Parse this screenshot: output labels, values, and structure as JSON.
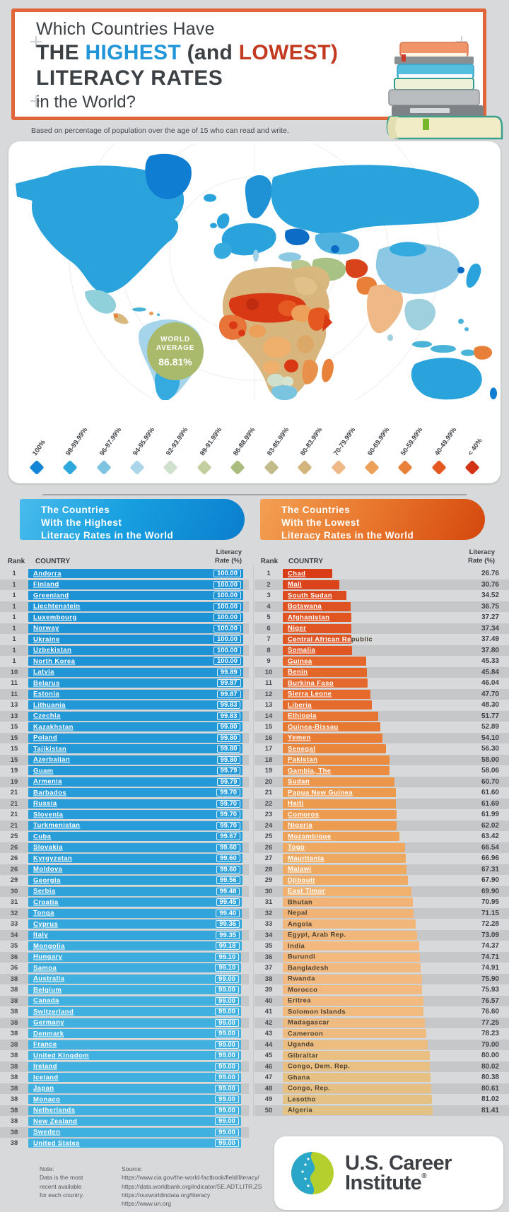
{
  "header": {
    "line1": "Which Countries Have",
    "line2_the": "THE ",
    "line2_highest": "HIGHEST",
    "line2_and": " (and ",
    "line2_lowest": "LOWEST)",
    "line3": "LITERACY RATES",
    "line4": "in the World?",
    "accent_blue": "#2096d8",
    "accent_red": "#c23a1f",
    "border_color": "#e0663a"
  },
  "subtitle": "Based on percentage of population over the age of 15 who can read and write.",
  "map": {
    "world_average_label1": "WORLD",
    "world_average_label2": "AVERAGE",
    "world_average_value": "86.81%",
    "circle_color": "#a9ba6d"
  },
  "tables": {
    "highest": {
      "title_lines": [
        "The Countries",
        "With the Highest",
        "Literacy Rates in the World"
      ],
      "header_rank": "Rank",
      "header_country": "COUNTRY",
      "header_rate_line1": "Literacy",
      "header_rate_line2": "Rate (%)",
      "bar_color_stops": [
        [
          99.0,
          "#3fb0df"
        ],
        [
          100.0,
          "#1d93d5"
        ]
      ]
    },
    "lowest": {
      "title_lines": [
        "The Countries",
        "With the Lowest",
        "Literacy Rates in the World"
      ],
      "header_rank": "Rank",
      "header_country": "COUNTRY",
      "header_rate_line1": "Literacy",
      "header_rate_line2": "Rate (%)",
      "bar_color_stops": [
        [
          26,
          "#d73c16"
        ],
        [
          34,
          "#dd4a1e"
        ],
        [
          40,
          "#e25e26"
        ],
        [
          48,
          "#e56a2c"
        ],
        [
          54,
          "#e97d35"
        ],
        [
          60,
          "#eb9346"
        ],
        [
          64,
          "#eda45a"
        ],
        [
          68,
          "#efab63"
        ],
        [
          71,
          "#f1b476"
        ],
        [
          76,
          "#f2ba80"
        ],
        [
          79,
          "#edbd80"
        ],
        [
          82,
          "#e0c386"
        ]
      ]
    }
  },
  "chart_data": [
    {
      "type": "bar",
      "id": "highest",
      "title": "The Countries With the Highest Literacy Rates in the World",
      "ylabel": "Literacy Rate (%)",
      "ranks": [
        "1",
        "1",
        "1",
        "1",
        "1",
        "1",
        "1",
        "1",
        "1",
        "10",
        "11",
        "11",
        "13",
        "13",
        "15",
        "15",
        "15",
        "15",
        "19",
        "19",
        "21",
        "21",
        "21",
        "21",
        "25",
        "26",
        "26",
        "26",
        "29",
        "30",
        "31",
        "32",
        "33",
        "34",
        "35",
        "36",
        "36",
        "38",
        "38",
        "38",
        "38",
        "38",
        "38",
        "38",
        "38",
        "38",
        "38",
        "38",
        "38",
        "38",
        "38",
        "38",
        "38"
      ],
      "categories": [
        "Andorra",
        "Finland",
        "Greenland",
        "Liechtenstein",
        "Luxembourg",
        "Norway",
        "Ukraine",
        "Uzbekistan",
        "North Korea",
        "Latvia",
        "Belarus",
        "Estonia",
        "Lithuania",
        "Czechia",
        "Kazakhstan",
        "Poland",
        "Tajikistan",
        "Azerbaijan",
        "Guam",
        "Armenia",
        "Barbados",
        "Russia",
        "Slovenia",
        "Turkmenistan",
        "Cuba",
        "Slovakia",
        "Kyrgyzstan",
        "Moldova",
        "Georgia",
        "Serbia",
        "Croatia",
        "Tonga",
        "Cyprus",
        "Italy",
        "Mongolia",
        "Hungary",
        "Samoa",
        "Australia",
        "Belgium",
        "Canada",
        "Switzerland",
        "Germany",
        "Denmark",
        "France",
        "United Kingdom",
        "Ireland",
        "Iceland",
        "Japan",
        "Monaco",
        "Netherlands",
        "New Zealand",
        "Sweden",
        "United States"
      ],
      "values": [
        100.0,
        100.0,
        100.0,
        100.0,
        100.0,
        100.0,
        100.0,
        100.0,
        100.0,
        99.89,
        99.87,
        99.87,
        99.83,
        99.83,
        99.8,
        99.8,
        99.8,
        99.8,
        99.79,
        99.79,
        99.7,
        99.7,
        99.7,
        99.7,
        99.67,
        99.6,
        99.6,
        99.6,
        99.56,
        99.48,
        99.45,
        99.4,
        99.36,
        99.35,
        99.18,
        99.1,
        99.1,
        99.0,
        99.0,
        99.0,
        99.0,
        99.0,
        99.0,
        99.0,
        99.0,
        99.0,
        99.0,
        99.0,
        99.0,
        99.0,
        99.0,
        99.0,
        99.0
      ]
    },
    {
      "type": "bar",
      "id": "lowest",
      "title": "The Countries With the Lowest Literacy Rates in the World",
      "ylabel": "Literacy Rate (%)",
      "ranks": [
        "1",
        "2",
        "3",
        "4",
        "5",
        "6",
        "7",
        "8",
        "9",
        "10",
        "11",
        "12",
        "13",
        "14",
        "15",
        "16",
        "17",
        "18",
        "19",
        "20",
        "21",
        "22",
        "23",
        "24",
        "25",
        "26",
        "27",
        "28",
        "29",
        "30",
        "31",
        "32",
        "33",
        "34",
        "35",
        "36",
        "37",
        "38",
        "39",
        "40",
        "41",
        "42",
        "43",
        "44",
        "45",
        "46",
        "47",
        "48",
        "49",
        "50"
      ],
      "categories": [
        "Chad",
        "Mali",
        "South Sudan",
        "Botswana",
        "Afghanistan",
        "Niger",
        "Central African Republic",
        "Somalia",
        "Guinea",
        "Benin",
        "Burkina Faso",
        "Sierra Leone",
        "Liberia",
        "Ethiopia",
        "Guinea-Bissau",
        "Yemen",
        "Senegal",
        "Pakistan",
        "Gambia, The",
        "Sudan",
        "Papua New Guinea",
        "Haiti",
        "Comoros",
        "Nigeria",
        "Mozambique",
        "Togo",
        "Mauritania",
        "Malawi",
        "Djibouti",
        "East Timor",
        "Bhutan",
        "Nepal",
        "Angola",
        "Egypt, Arab Rep.",
        "India",
        "Burundi",
        "Bangladesh",
        "Rwanda",
        "Morocco",
        "Eritrea",
        "Solomon Islands",
        "Madagascar",
        "Cameroon",
        "Uganda",
        "Gibraltar",
        "Congo, Dem. Rep.",
        "Ghana",
        "Congo, Rep.",
        "Lesotho",
        "Algeria"
      ],
      "values": [
        26.76,
        30.76,
        34.52,
        36.75,
        37.27,
        37.34,
        37.49,
        37.8,
        45.33,
        45.84,
        46.04,
        47.7,
        48.3,
        51.77,
        52.89,
        54.1,
        56.3,
        58.0,
        58.06,
        60.7,
        61.6,
        61.69,
        61.99,
        62.02,
        63.42,
        66.54,
        66.96,
        67.31,
        67.9,
        69.9,
        70.95,
        71.15,
        72.28,
        73.09,
        74.37,
        74.71,
        74.91,
        75.9,
        75.93,
        76.57,
        76.6,
        77.25,
        78.23,
        79.0,
        80.0,
        80.02,
        80.38,
        80.61,
        81.02,
        81.41
      ]
    },
    {
      "type": "heatmap",
      "id": "world-map",
      "title": "World map of literacy rates by country",
      "world_average_pct": 86.81,
      "bins": [
        "100%",
        "98-99.99%",
        "96-97.99%",
        "94-95.99%",
        "92-93.99%",
        "89-91.99%",
        "86-88.99%",
        "83-85.99%",
        "80-83.99%",
        "70-79.99%",
        "60-69.99%",
        "50-59.99%",
        "40-49.99%",
        "< 40%"
      ],
      "bin_colors": [
        "#1385d6",
        "#2fa8dc",
        "#7fc3e2",
        "#abd6ea",
        "#cfe0cd",
        "#c3cf9f",
        "#aabd7e",
        "#c2bb8a",
        "#d2b57c",
        "#eeb987",
        "#eca05a",
        "#e8823a",
        "#e65822",
        "#d33214"
      ]
    }
  ],
  "footer": {
    "note_label": "Note:",
    "note_lines": [
      "Data is the most",
      "recent available",
      "for each country."
    ],
    "source_label": "Source:",
    "sources": [
      "https://www.cia.gov/the-world-factbook/field/literacy/",
      "https://data.worldbank.org/indicator/SE.ADT.LITR.ZS",
      "https://ourworldindata.org/literacy",
      "https://www.un.org"
    ],
    "logo_line1": "U.S. Career",
    "logo_line2": "Institute",
    "logo_reg": "®"
  }
}
